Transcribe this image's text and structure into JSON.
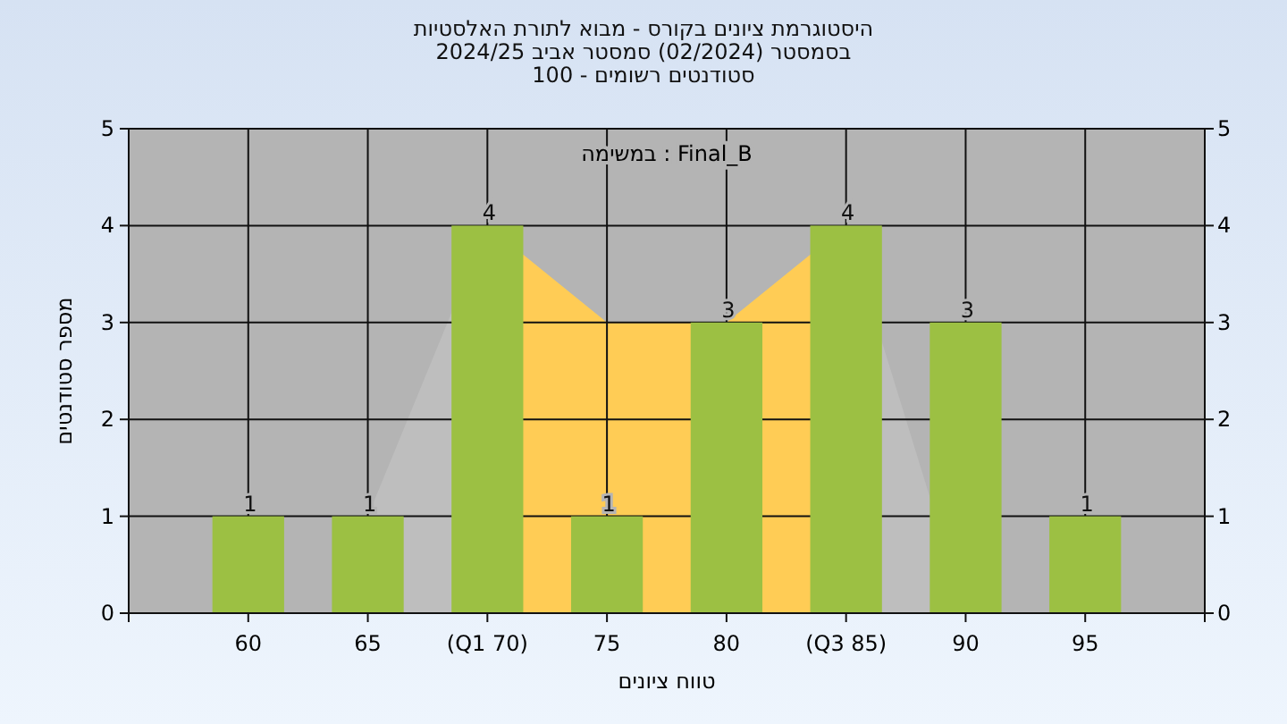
{
  "chart_data": {
    "type": "bar",
    "title": "היסטוגרמת ציונים בקורס - מבוא לתורת האלסטיות",
    "subtitle": "בסמסטר  (02/2024)  סמסטר אביב 2024/25\nסטודנטים רשומים - 100",
    "xlabel": "טווח ציונים",
    "ylabel": "מספר סטודנטים",
    "annotations": [
      "במשימה : Final_B"
    ],
    "categories": [
      "60",
      "65",
      "(Q1 70)",
      "75",
      "80",
      "(Q3 85)",
      "90",
      "95"
    ],
    "series": [
      {
        "type": "area",
        "color": "#bebebe",
        "values": [
          null,
          1,
          4,
          null,
          null,
          4,
          0,
          null
        ]
      },
      {
        "type": "area",
        "color": "#ffcc55",
        "values": [
          null,
          null,
          4,
          3,
          3,
          4,
          null,
          null
        ]
      },
      {
        "color": "#9cc043",
        "values": [
          1,
          1,
          4,
          1,
          3,
          4,
          3,
          1
        ],
        "value_labels": [
          "1",
          "1",
          "4",
          "1",
          "3",
          "4",
          "3",
          "1"
        ]
      }
    ],
    "ylim": [
      0,
      5
    ],
    "yticks": [
      0,
      1,
      2,
      3,
      4,
      5
    ],
    "y2lim": [
      0,
      5
    ],
    "y2ticks": [
      0,
      1,
      2,
      3,
      4,
      5
    ],
    "grid": true
  }
}
